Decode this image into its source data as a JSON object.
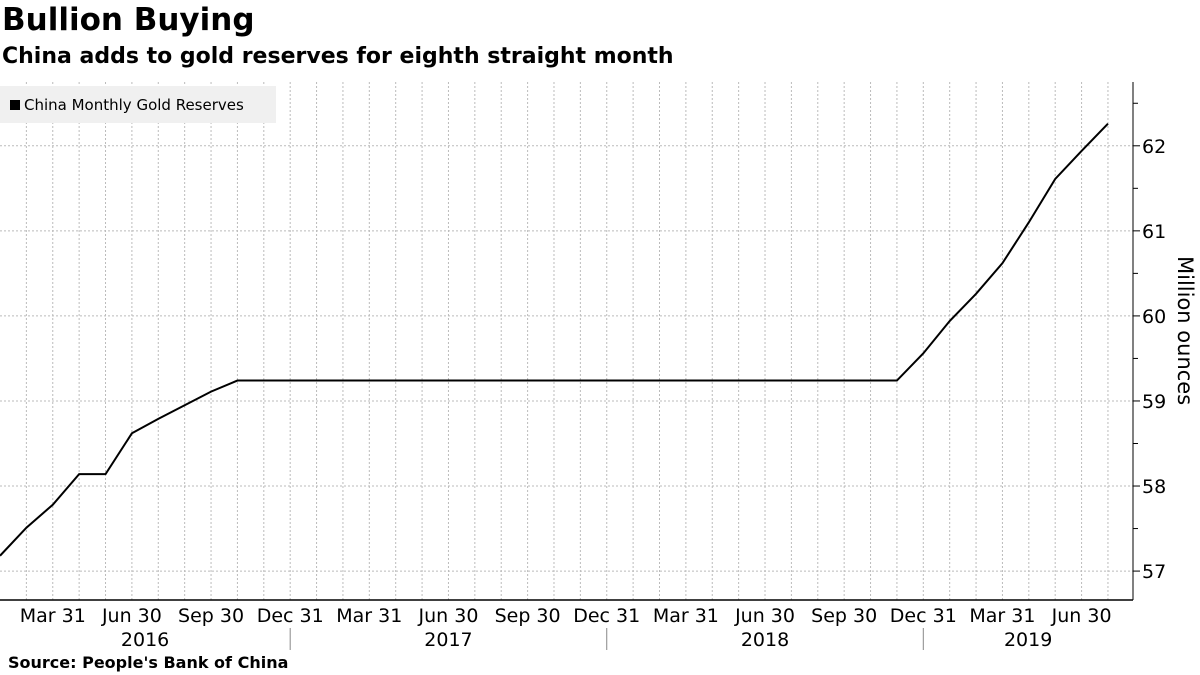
{
  "title": "Bullion Buying",
  "subtitle": "China adds to gold reserves for eighth straight month",
  "source": "Source:  People's Bank of China",
  "chart_data": {
    "type": "line",
    "title": "Bullion Buying",
    "ylabel": "Million ounces",
    "ylim": [
      56.66,
      62.75
    ],
    "yticks": [
      57,
      58,
      59,
      60,
      61,
      62
    ],
    "grid": true,
    "legend_position": "top-left",
    "xtick_labels": [
      {
        "label": "Mar 31",
        "month": 2
      },
      {
        "label": "Jun 30",
        "month": 5
      },
      {
        "label": "Sep 30",
        "month": 8
      },
      {
        "label": "Dec 31",
        "month": 11
      },
      {
        "label": "Mar 31",
        "month": 14
      },
      {
        "label": "Jun 30",
        "month": 17
      },
      {
        "label": "Sep 30",
        "month": 20
      },
      {
        "label": "Dec 31",
        "month": 23
      },
      {
        "label": "Mar 31",
        "month": 26
      },
      {
        "label": "Jun 30",
        "month": 29
      },
      {
        "label": "Sep 30",
        "month": 32
      },
      {
        "label": "Dec 31",
        "month": 35
      },
      {
        "label": "Mar 31",
        "month": 38
      },
      {
        "label": "Jun 30",
        "month": 41
      }
    ],
    "years": [
      "2016",
      "2017",
      "2018",
      "2019"
    ],
    "series": [
      {
        "name": "China Monthly Gold Reserves",
        "color": "#000000",
        "start": "2016-01",
        "values": [
          57.18,
          57.51,
          57.78,
          58.14,
          58.14,
          58.62,
          58.79,
          58.95,
          59.11,
          59.24,
          59.24,
          59.24,
          59.24,
          59.24,
          59.24,
          59.24,
          59.24,
          59.24,
          59.24,
          59.24,
          59.24,
          59.24,
          59.24,
          59.24,
          59.24,
          59.24,
          59.24,
          59.24,
          59.24,
          59.24,
          59.24,
          59.24,
          59.24,
          59.24,
          59.24,
          59.56,
          59.94,
          60.26,
          60.62,
          61.1,
          61.61,
          61.94,
          62.26
        ]
      }
    ]
  }
}
